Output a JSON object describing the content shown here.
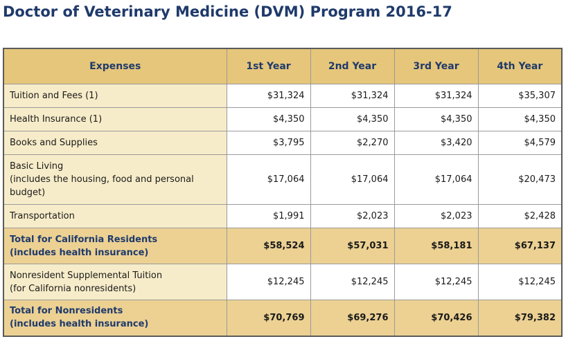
{
  "title": "Doctor of Veterinary Medicine (DVM) Program 2016-17",
  "header": {
    "expenses": "Expenses",
    "year1": "1st Year",
    "year2": "2nd Year",
    "year3": "3rd Year",
    "year4": "4th Year"
  },
  "rows": [
    {
      "label": [
        "Tuition and Fees (1)"
      ],
      "values": [
        "$31,324",
        "$31,324",
        "$31,324",
        "$35,307"
      ]
    },
    {
      "label": [
        "Health Insurance (1)"
      ],
      "values": [
        "$4,350",
        "$4,350",
        "$4,350",
        "$4,350"
      ]
    },
    {
      "label": [
        "Books and Supplies"
      ],
      "values": [
        "$3,795",
        "$2,270",
        "$3,420",
        "$4,579"
      ]
    },
    {
      "label": [
        "Basic Living",
        "(includes the housing, food and personal",
        "budget)"
      ],
      "values": [
        "$17,064",
        "$17,064",
        "$17,064",
        "$20,473"
      ]
    },
    {
      "label": [
        "Transportation"
      ],
      "values": [
        "$1,991",
        "$2,023",
        "$2,023",
        "$2,428"
      ]
    },
    {
      "label": [
        "Total for California Residents",
        "(includes health insurance)"
      ],
      "values": [
        "$58,524",
        "$57,031",
        "$58,181",
        "$67,137"
      ]
    },
    {
      "label": [
        "Nonresident Supplemental Tuition",
        "(for California nonresidents)"
      ],
      "values": [
        "$12,245",
        "$12,245",
        "$12,245",
        "$12,245"
      ]
    },
    {
      "label": [
        "Total for Nonresidents",
        "(includes health insurance)"
      ],
      "values": [
        "$70,769",
        "$69,276",
        "$70,426",
        "$79,382"
      ]
    }
  ]
}
